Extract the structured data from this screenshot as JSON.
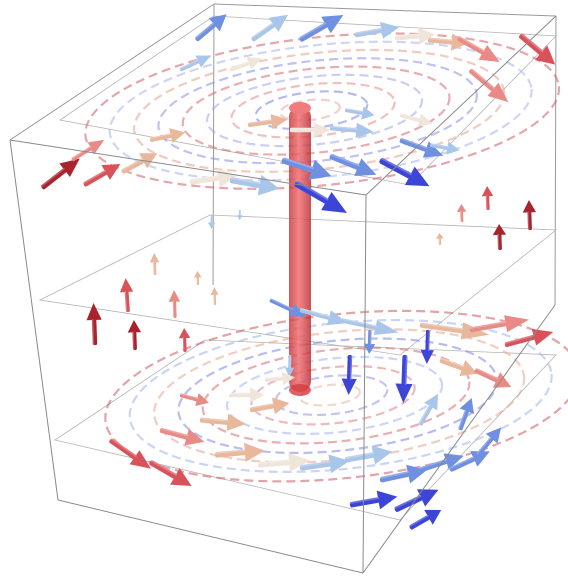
{
  "figure": {
    "kind": "3d-vector-field",
    "description_visible_text": "",
    "colors": {
      "red_strong": "#a8232e",
      "red": "#d9525a",
      "red_light": "#e98a86",
      "peach": "#e8b79c",
      "cream": "#efe5da",
      "blue_light": "#a9c6ea",
      "blue": "#6f8fe0",
      "blue_strong": "#3d45d6",
      "central_tube": "#e8484c",
      "box_edge": "#8a8a8a"
    }
  }
}
